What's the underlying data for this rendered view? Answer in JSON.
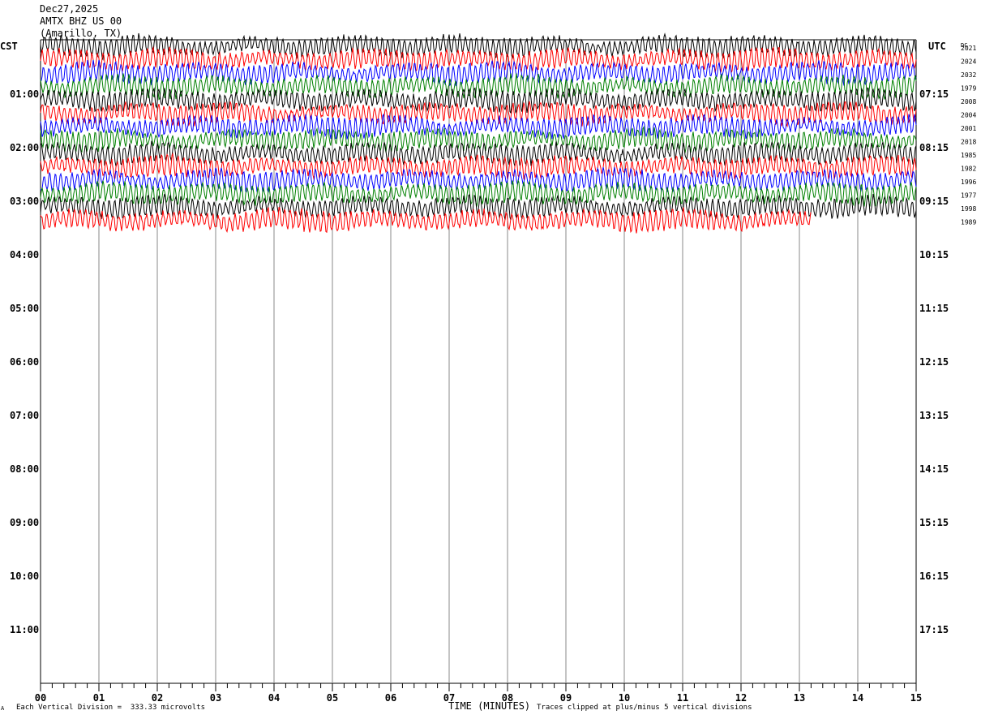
{
  "header": {
    "date": "Dec27,2025",
    "station": "AMTX BHZ US 00",
    "location": "(Amarillo, TX)"
  },
  "left_tz_label": "CST",
  "right_tz_label": "UTC",
  "dc_label": "DC",
  "footer": {
    "division_note": "Each Vertical Division =  333.33 microvolts",
    "clip_note": "Traces clipped at plus/minus 5 vertical divisions",
    "corner_mark": "A"
  },
  "trace_colors": [
    "#000000",
    "#ff0000",
    "#0000ff",
    "#008000"
  ],
  "chart_data": {
    "type": "line",
    "title": "",
    "xlabel": "TIME (MINUTES)",
    "ylabel": "",
    "x_range": [
      0,
      15
    ],
    "x_ticks": [
      "00",
      "01",
      "02",
      "03",
      "04",
      "05",
      "06",
      "07",
      "08",
      "09",
      "10",
      "11",
      "12",
      "13",
      "14",
      "15"
    ],
    "left_hour_labels": [
      "CST",
      "01:00",
      "02:00",
      "03:00",
      "04:00",
      "05:00",
      "06:00",
      "07:00",
      "08:00",
      "09:00",
      "10:00",
      "11:00"
    ],
    "right_hour_labels": [
      "UTC",
      "07:15",
      "08:15",
      "09:15",
      "10:15",
      "11:15",
      "12:15",
      "13:15",
      "14:15",
      "15:15",
      "16:15",
      "17:15"
    ],
    "dc_offsets": [
      "2021",
      "2024",
      "2032",
      "1979",
      "2008",
      "2004",
      "2001",
      "2018",
      "1985",
      "1982",
      "1996",
      "1977",
      "1998",
      "1989"
    ],
    "trace_count": 14,
    "last_trace_end_minute": 13.2,
    "grid": "vertical lines each minute"
  }
}
